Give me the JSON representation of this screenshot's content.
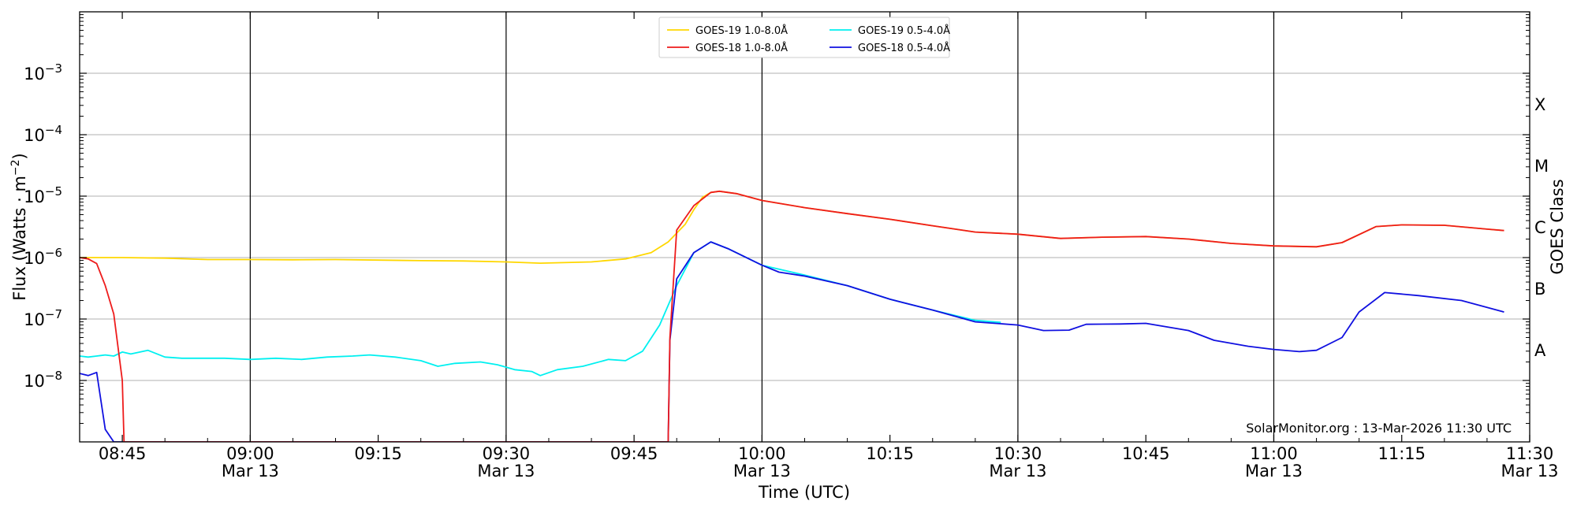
{
  "chart_data": {
    "type": "line",
    "xlabel": "Time (UTC)",
    "ylabel_main": "Flux (Watts · m",
    "ylabel_sup": "−2",
    "ylabel_end": ")",
    "right_label": "GOES Class",
    "y_scale": "log",
    "ylim": [
      1e-09,
      0.01
    ],
    "xlim": [
      "08:40",
      "11:30"
    ],
    "grid": "horizontal at decades",
    "legend_position": "top-center",
    "credit": "SolarMonitor.org : 13-Mar-2026 11:30 UTC",
    "y_ticks": [
      {
        "value": 1e-08,
        "base": "10",
        "exp": "−8"
      },
      {
        "value": 1e-07,
        "base": "10",
        "exp": "−7"
      },
      {
        "value": 1e-06,
        "base": "10",
        "exp": "−6"
      },
      {
        "value": 1e-05,
        "base": "10",
        "exp": "−5"
      },
      {
        "value": 0.0001,
        "base": "10",
        "exp": "−4"
      },
      {
        "value": 0.001,
        "base": "10",
        "exp": "−3"
      }
    ],
    "x_ticks": [
      {
        "time": "08:45",
        "label": "08:45",
        "date": ""
      },
      {
        "time": "09:00",
        "label": "09:00",
        "date": "Mar 13"
      },
      {
        "time": "09:15",
        "label": "09:15",
        "date": ""
      },
      {
        "time": "09:30",
        "label": "09:30",
        "date": "Mar 13"
      },
      {
        "time": "09:45",
        "label": "09:45",
        "date": ""
      },
      {
        "time": "10:00",
        "label": "10:00",
        "date": "Mar 13"
      },
      {
        "time": "10:15",
        "label": "10:15",
        "date": ""
      },
      {
        "time": "10:30",
        "label": "10:30",
        "date": "Mar 13"
      },
      {
        "time": "10:45",
        "label": "10:45",
        "date": ""
      },
      {
        "time": "11:00",
        "label": "11:00",
        "date": "Mar 13"
      },
      {
        "time": "11:15",
        "label": "11:15",
        "date": ""
      },
      {
        "time": "11:30",
        "label": "11:30",
        "date": "Mar 13"
      }
    ],
    "vertical_lines": [
      "09:00",
      "09:30",
      "10:00",
      "10:30",
      "11:00"
    ],
    "goes_classes": [
      {
        "label": "A",
        "value": 3.16e-08
      },
      {
        "label": "B",
        "value": 3.16e-07
      },
      {
        "label": "C",
        "value": 3.16e-06
      },
      {
        "label": "M",
        "value": 3.16e-05
      },
      {
        "label": "X",
        "value": 0.000316
      }
    ],
    "series": [
      {
        "name": "GOES-19 1.0-8.0Å",
        "color": "#ffd700",
        "points": [
          [
            "08:40",
            1e-06
          ],
          [
            "08:45",
            1e-06
          ],
          [
            "08:50",
            9.8e-07
          ],
          [
            "08:55",
            9.3e-07
          ],
          [
            "09:00",
            9.3e-07
          ],
          [
            "09:05",
            9.2e-07
          ],
          [
            "09:10",
            9.3e-07
          ],
          [
            "09:15",
            9.1e-07
          ],
          [
            "09:20",
            8.9e-07
          ],
          [
            "09:25",
            8.8e-07
          ],
          [
            "09:30",
            8.5e-07
          ],
          [
            "09:34",
            8.1e-07
          ],
          [
            "09:40",
            8.5e-07
          ],
          [
            "09:44",
            9.5e-07
          ],
          [
            "09:47",
            1.2e-06
          ],
          [
            "09:49",
            1.8e-06
          ],
          [
            "09:51",
            3.5e-06
          ],
          [
            "09:52",
            6e-06
          ],
          [
            "09:53",
            9.5e-06
          ],
          [
            "09:54",
            1.15e-05
          ],
          [
            "09:55",
            1.2e-05
          ],
          [
            "09:57",
            1.1e-05
          ],
          [
            "10:00",
            8.5e-06
          ],
          [
            "10:05",
            6.5e-06
          ],
          [
            "10:10",
            5.2e-06
          ],
          [
            "10:15",
            4.2e-06
          ],
          [
            "10:20",
            3.3e-06
          ],
          [
            "10:25",
            2.6e-06
          ],
          [
            "10:30",
            2.4e-06
          ],
          [
            "10:35",
            2.05e-06
          ],
          [
            "10:40",
            2.15e-06
          ],
          [
            "10:45",
            2.2e-06
          ],
          [
            "10:50",
            2e-06
          ],
          [
            "10:55",
            1.7e-06
          ],
          [
            "11:00",
            1.55e-06
          ],
          [
            "11:05",
            1.5e-06
          ],
          [
            "11:08",
            1.75e-06
          ],
          [
            "11:12",
            3.2e-06
          ],
          [
            "11:15",
            3.4e-06
          ],
          [
            "11:20",
            3.35e-06
          ],
          [
            "11:25",
            2.9e-06
          ],
          [
            "11:27",
            2.75e-06
          ]
        ]
      },
      {
        "name": "GOES-18 1.0-8.0Å",
        "color": "#ee1c1c",
        "points": [
          [
            "08:40",
            1e-06
          ],
          [
            "08:41",
            9.5e-07
          ],
          [
            "08:42",
            8e-07
          ],
          [
            "08:43",
            3.5e-07
          ],
          [
            "08:44",
            1.2e-07
          ],
          [
            "08:45",
            1e-08
          ],
          [
            "08:45.2",
            1e-09
          ],
          [
            "09:49",
            1e-09
          ],
          [
            "09:49.2",
            5e-08
          ],
          [
            "09:50",
            2.8e-06
          ],
          [
            "09:52",
            7e-06
          ],
          [
            "09:54",
            1.15e-05
          ],
          [
            "09:55",
            1.2e-05
          ],
          [
            "09:57",
            1.1e-05
          ],
          [
            "10:00",
            8.5e-06
          ],
          [
            "10:05",
            6.5e-06
          ],
          [
            "10:10",
            5.2e-06
          ],
          [
            "10:15",
            4.2e-06
          ],
          [
            "10:20",
            3.3e-06
          ],
          [
            "10:25",
            2.6e-06
          ],
          [
            "10:30",
            2.4e-06
          ],
          [
            "10:35",
            2.05e-06
          ],
          [
            "10:40",
            2.15e-06
          ],
          [
            "10:45",
            2.2e-06
          ],
          [
            "10:50",
            2e-06
          ],
          [
            "10:55",
            1.7e-06
          ],
          [
            "11:00",
            1.55e-06
          ],
          [
            "11:05",
            1.5e-06
          ],
          [
            "11:08",
            1.75e-06
          ],
          [
            "11:12",
            3.2e-06
          ],
          [
            "11:15",
            3.4e-06
          ],
          [
            "11:20",
            3.35e-06
          ],
          [
            "11:25",
            2.9e-06
          ],
          [
            "11:27",
            2.75e-06
          ]
        ]
      },
      {
        "name": "GOES-19 0.5-4.0Å",
        "color": "#00f0f0",
        "points": [
          [
            "08:40",
            2.5e-08
          ],
          [
            "08:41",
            2.4e-08
          ],
          [
            "08:42",
            2.5e-08
          ],
          [
            "08:43",
            2.6e-08
          ],
          [
            "08:44",
            2.5e-08
          ],
          [
            "08:45",
            2.9e-08
          ],
          [
            "08:46",
            2.7e-08
          ],
          [
            "08:48",
            3.1e-08
          ],
          [
            "08:50",
            2.4e-08
          ],
          [
            "08:52",
            2.3e-08
          ],
          [
            "08:54",
            2.3e-08
          ],
          [
            "08:57",
            2.3e-08
          ],
          [
            "09:00",
            2.2e-08
          ],
          [
            "09:03",
            2.3e-08
          ],
          [
            "09:06",
            2.2e-08
          ],
          [
            "09:09",
            2.4e-08
          ],
          [
            "09:12",
            2.5e-08
          ],
          [
            "09:14",
            2.6e-08
          ],
          [
            "09:17",
            2.4e-08
          ],
          [
            "09:20",
            2.1e-08
          ],
          [
            "09:22",
            1.7e-08
          ],
          [
            "09:24",
            1.9e-08
          ],
          [
            "09:27",
            2e-08
          ],
          [
            "09:29",
            1.8e-08
          ],
          [
            "09:31",
            1.5e-08
          ],
          [
            "09:33",
            1.4e-08
          ],
          [
            "09:34",
            1.2e-08
          ],
          [
            "09:36",
            1.5e-08
          ],
          [
            "09:39",
            1.7e-08
          ],
          [
            "09:42",
            2.2e-08
          ],
          [
            "09:44",
            2.1e-08
          ],
          [
            "09:46",
            3e-08
          ],
          [
            "09:48",
            8e-08
          ],
          [
            "09:50",
            3.5e-07
          ],
          [
            "09:52",
            1.2e-06
          ],
          [
            "09:54",
            1.8e-06
          ],
          [
            "09:56",
            1.4e-06
          ],
          [
            "10:00",
            7.5e-07
          ],
          [
            "10:05",
            5.2e-07
          ],
          [
            "10:10",
            3.5e-07
          ],
          [
            "10:15",
            2.1e-07
          ],
          [
            "10:20",
            1.4e-07
          ],
          [
            "10:25",
            9.5e-08
          ],
          [
            "10:28",
            8.8e-08
          ]
        ]
      },
      {
        "name": "GOES-18 0.5-4.0Å",
        "color": "#1010e0",
        "points": [
          [
            "08:40",
            1.3e-08
          ],
          [
            "08:41",
            1.2e-08
          ],
          [
            "08:42",
            1.35e-08
          ],
          [
            "08:43",
            1.6e-09
          ],
          [
            "08:44",
            1e-09
          ],
          [
            "09:49",
            1e-09
          ],
          [
            "09:49.2",
            4.5e-08
          ],
          [
            "09:50",
            4.5e-07
          ],
          [
            "09:52",
            1.2e-06
          ],
          [
            "09:54",
            1.8e-06
          ],
          [
            "09:56",
            1.4e-06
          ],
          [
            "10:00",
            7.5e-07
          ],
          [
            "10:02",
            5.8e-07
          ],
          [
            "10:05",
            5e-07
          ],
          [
            "10:10",
            3.5e-07
          ],
          [
            "10:15",
            2.1e-07
          ],
          [
            "10:20",
            1.4e-07
          ],
          [
            "10:25",
            9e-08
          ],
          [
            "10:30",
            8e-08
          ],
          [
            "10:33",
            6.5e-08
          ],
          [
            "10:36",
            6.6e-08
          ],
          [
            "10:38",
            8.2e-08
          ],
          [
            "10:42",
            8.3e-08
          ],
          [
            "10:45",
            8.5e-08
          ],
          [
            "10:50",
            6.5e-08
          ],
          [
            "10:53",
            4.5e-08
          ],
          [
            "10:57",
            3.6e-08
          ],
          [
            "11:00",
            3.2e-08
          ],
          [
            "11:03",
            2.95e-08
          ],
          [
            "11:05",
            3.1e-08
          ],
          [
            "11:08",
            5e-08
          ],
          [
            "11:10",
            1.3e-07
          ],
          [
            "11:13",
            2.7e-07
          ],
          [
            "11:17",
            2.4e-07
          ],
          [
            "11:22",
            2e-07
          ],
          [
            "11:27",
            1.3e-07
          ]
        ]
      }
    ]
  }
}
